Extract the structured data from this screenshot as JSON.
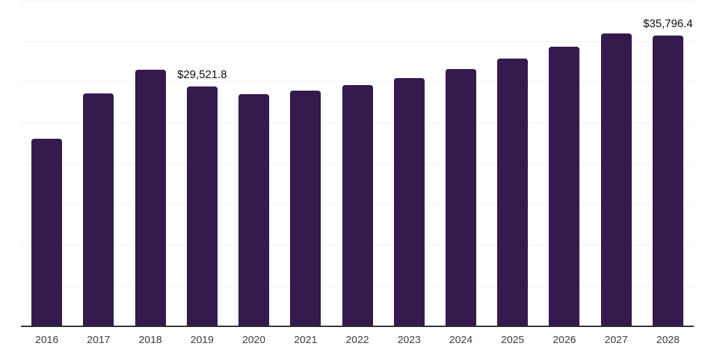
{
  "chart_data": {
    "type": "bar",
    "title": "",
    "xlabel": "",
    "ylabel": "",
    "legend": "none",
    "grid": "horizontal",
    "ylim": [
      0,
      40000
    ],
    "gridline_step": 5000,
    "categories": [
      "2016",
      "2017",
      "2018",
      "2019",
      "2020",
      "2021",
      "2022",
      "2023",
      "2024",
      "2025",
      "2026",
      "2027",
      "2028"
    ],
    "values": [
      23100,
      28650,
      31550,
      29521.8,
      28600,
      29000,
      29700,
      30550,
      31650,
      32900,
      34400,
      36000,
      35796.4
    ],
    "data_labels": [
      {
        "category": "2019",
        "text": "$29,521.8"
      },
      {
        "category": "2028",
        "text": "$35,796.4"
      }
    ],
    "colors": {
      "bar": "#351A4D",
      "axis_line": "#2B2B30",
      "gridline": "#F1F1F4",
      "tick_label": "#3D3D3D",
      "value_label": "#0D0D0D",
      "background": "#FFFFFF"
    }
  }
}
